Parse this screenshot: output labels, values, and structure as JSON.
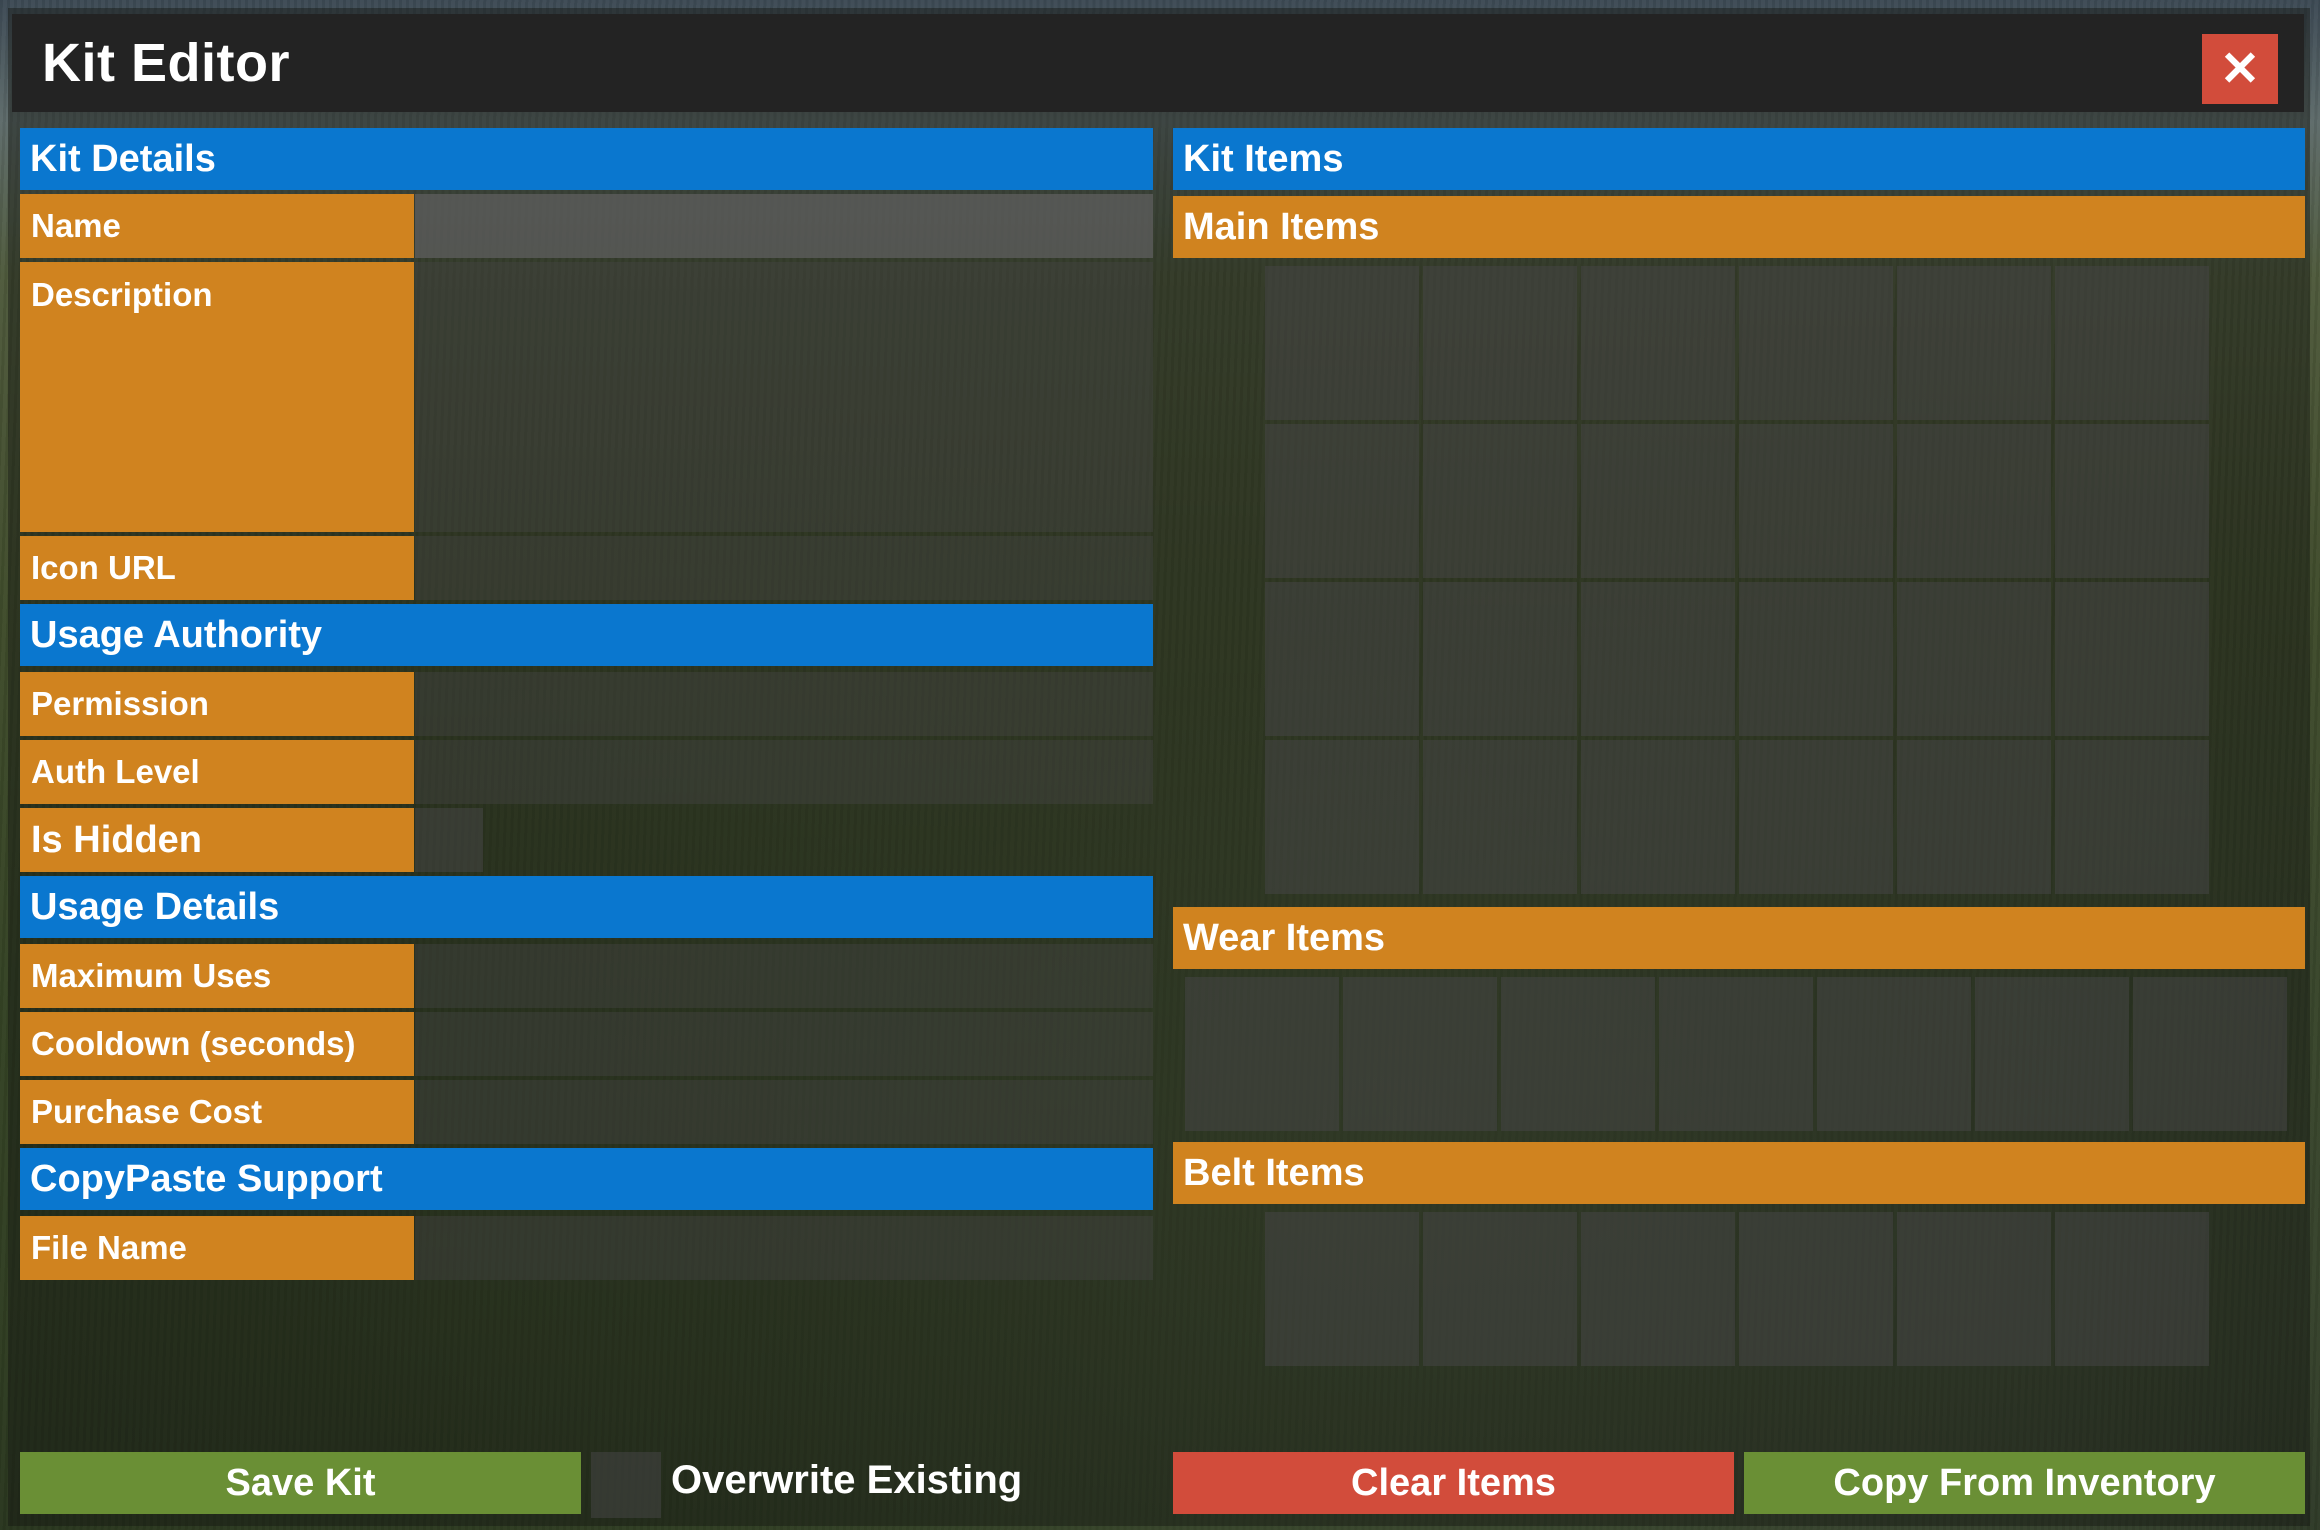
{
  "window": {
    "title": "Kit Editor",
    "close_icon": "close-icon",
    "close_symbol": "✕"
  },
  "kit_details": {
    "header": "Kit Details",
    "name_label": "Name",
    "name_value": "",
    "description_label": "Description",
    "description_value": "",
    "icon_url_label": "Icon URL",
    "icon_url_value": ""
  },
  "usage_authority": {
    "header": "Usage Authority",
    "permission_label": "Permission",
    "permission_value": "",
    "auth_level_label": "Auth Level",
    "auth_level_value": "",
    "is_hidden_label": "Is Hidden",
    "is_hidden_checked": false
  },
  "usage_details": {
    "header": "Usage Details",
    "max_uses_label": "Maximum Uses",
    "max_uses_value": "",
    "cooldown_label": "Cooldown (seconds)",
    "cooldown_value": "",
    "purchase_cost_label": "Purchase Cost",
    "purchase_cost_value": ""
  },
  "copypaste": {
    "header": "CopyPaste Support",
    "file_name_label": "File Name",
    "file_name_value": ""
  },
  "kit_items": {
    "header": "Kit Items",
    "main_items_label": "Main Items",
    "main_items_slots": 24,
    "wear_items_label": "Wear Items",
    "wear_items_slots": 7,
    "belt_items_label": "Belt Items",
    "belt_items_slots": 6
  },
  "footer": {
    "save_label": "Save Kit",
    "overwrite_label": "Overwrite Existing",
    "overwrite_checked": false,
    "clear_label": "Clear Items",
    "copy_label": "Copy From Inventory"
  },
  "colors": {
    "section_header": "#0a77cf",
    "label_bg": "#d0831f",
    "titlebar": "#232323",
    "close_button": "#d24c3b",
    "save_button": "#6a8f35",
    "clear_button": "#d24c3b",
    "copy_button": "#6a8f35"
  }
}
